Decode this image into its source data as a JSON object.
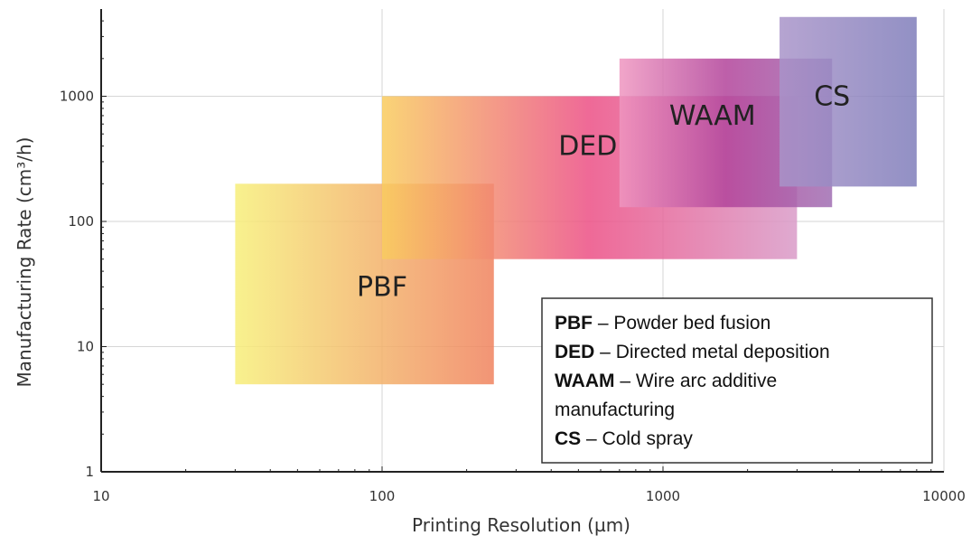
{
  "chart_data": {
    "type": "area",
    "title": "",
    "xlabel": "Printing Resolution (µm)",
    "ylabel": "Manufacturing Rate (cm³/h)",
    "xscale": "log",
    "yscale": "log",
    "xlim": [
      10,
      10000
    ],
    "ylim": [
      1,
      5000
    ],
    "x_ticks": [
      10,
      100,
      1000,
      10000
    ],
    "x_tick_labels": [
      "10",
      "100",
      "1000",
      "10000"
    ],
    "y_ticks": [
      1,
      10,
      100,
      1000
    ],
    "y_tick_labels": [
      "1",
      "10",
      "100",
      "1000"
    ],
    "grid": true,
    "regions": [
      {
        "name": "PBF",
        "label": "PBF",
        "x_range": [
          30,
          250
        ],
        "y_range": [
          5,
          200
        ],
        "colors": [
          "#f7ef7a",
          "#f0825e"
        ],
        "label_at": [
          100,
          30
        ]
      },
      {
        "name": "DED",
        "label": "DED",
        "x_range": [
          100,
          3000
        ],
        "y_range": [
          50,
          1000
        ],
        "colors": [
          "#f9cc5e",
          "#ec4f85",
          "#d99bc8"
        ],
        "label_at": [
          540,
          400
        ]
      },
      {
        "name": "WAAM",
        "label": "WAAM",
        "x_range": [
          700,
          4000
        ],
        "y_range": [
          130,
          2000
        ],
        "colors": [
          "#ef96c0",
          "#b2439a",
          "#a06eb2"
        ],
        "label_at": [
          1500,
          700
        ]
      },
      {
        "name": "CS",
        "label": "CS",
        "x_range": [
          2600,
          8000
        ],
        "y_range": [
          190,
          4300
        ],
        "colors": [
          "#a994c9",
          "#7f7dba"
        ],
        "label_at": [
          4000,
          1000
        ]
      }
    ],
    "legend": {
      "placement": "bottom-right",
      "entries": [
        {
          "abbr": "PBF",
          "desc": "Powder bed fusion"
        },
        {
          "abbr": "DED",
          "desc": "Directed metal deposition"
        },
        {
          "abbr": "WAAM",
          "desc": "Wire arc additive"
        },
        {
          "abbr": "",
          "desc": "manufacturing"
        },
        {
          "abbr": "CS",
          "desc": "Cold spray"
        }
      ],
      "separator": " – "
    }
  }
}
